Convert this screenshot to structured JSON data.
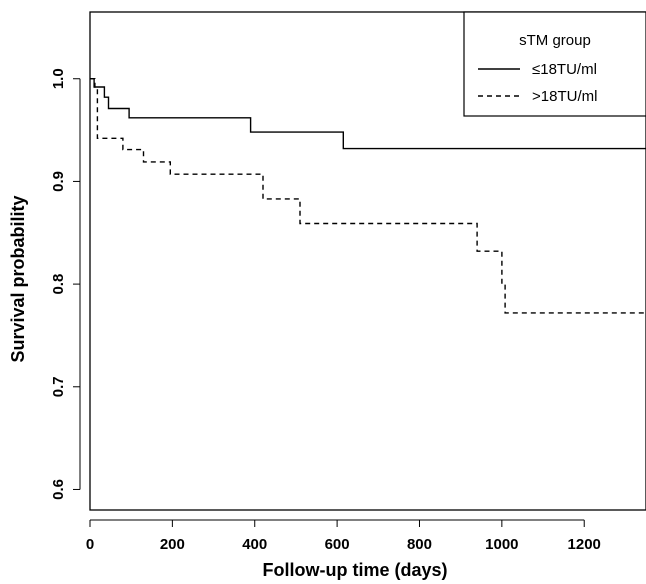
{
  "chart_data": {
    "type": "line",
    "xlabel": "Follow-up time (days)",
    "ylabel": "Survival probability",
    "xlim": [
      0,
      1350
    ],
    "ylim": [
      0.58,
      1.065
    ],
    "x_ticks": [
      0,
      200,
      400,
      600,
      800,
      1000,
      1200
    ],
    "y_ticks": [
      0.6,
      0.7,
      0.8,
      0.9,
      1.0
    ],
    "y_tick_labels": [
      "0.6",
      "0.7",
      "0.8",
      "0.9",
      "1.0"
    ],
    "grid": false,
    "legend": {
      "title": "sTM group",
      "placement": "top-right"
    },
    "series": [
      {
        "name": "≤18TU/ml",
        "style": "solid",
        "step": true,
        "points": [
          [
            0,
            1.0
          ],
          [
            10,
            0.992
          ],
          [
            35,
            0.982
          ],
          [
            45,
            0.971
          ],
          [
            95,
            0.962
          ],
          [
            390,
            0.948
          ],
          [
            615,
            0.932
          ],
          [
            1350,
            0.932
          ]
        ]
      },
      {
        "name": ">18TU/ml",
        "style": "dashed",
        "step": true,
        "points": [
          [
            0,
            1.0
          ],
          [
            12,
            0.99
          ],
          [
            18,
            0.942
          ],
          [
            80,
            0.931
          ],
          [
            130,
            0.919
          ],
          [
            195,
            0.907
          ],
          [
            420,
            0.883
          ],
          [
            510,
            0.859
          ],
          [
            940,
            0.832
          ],
          [
            1000,
            0.8
          ],
          [
            1008,
            0.772
          ],
          [
            1350,
            0.772
          ]
        ]
      }
    ]
  }
}
